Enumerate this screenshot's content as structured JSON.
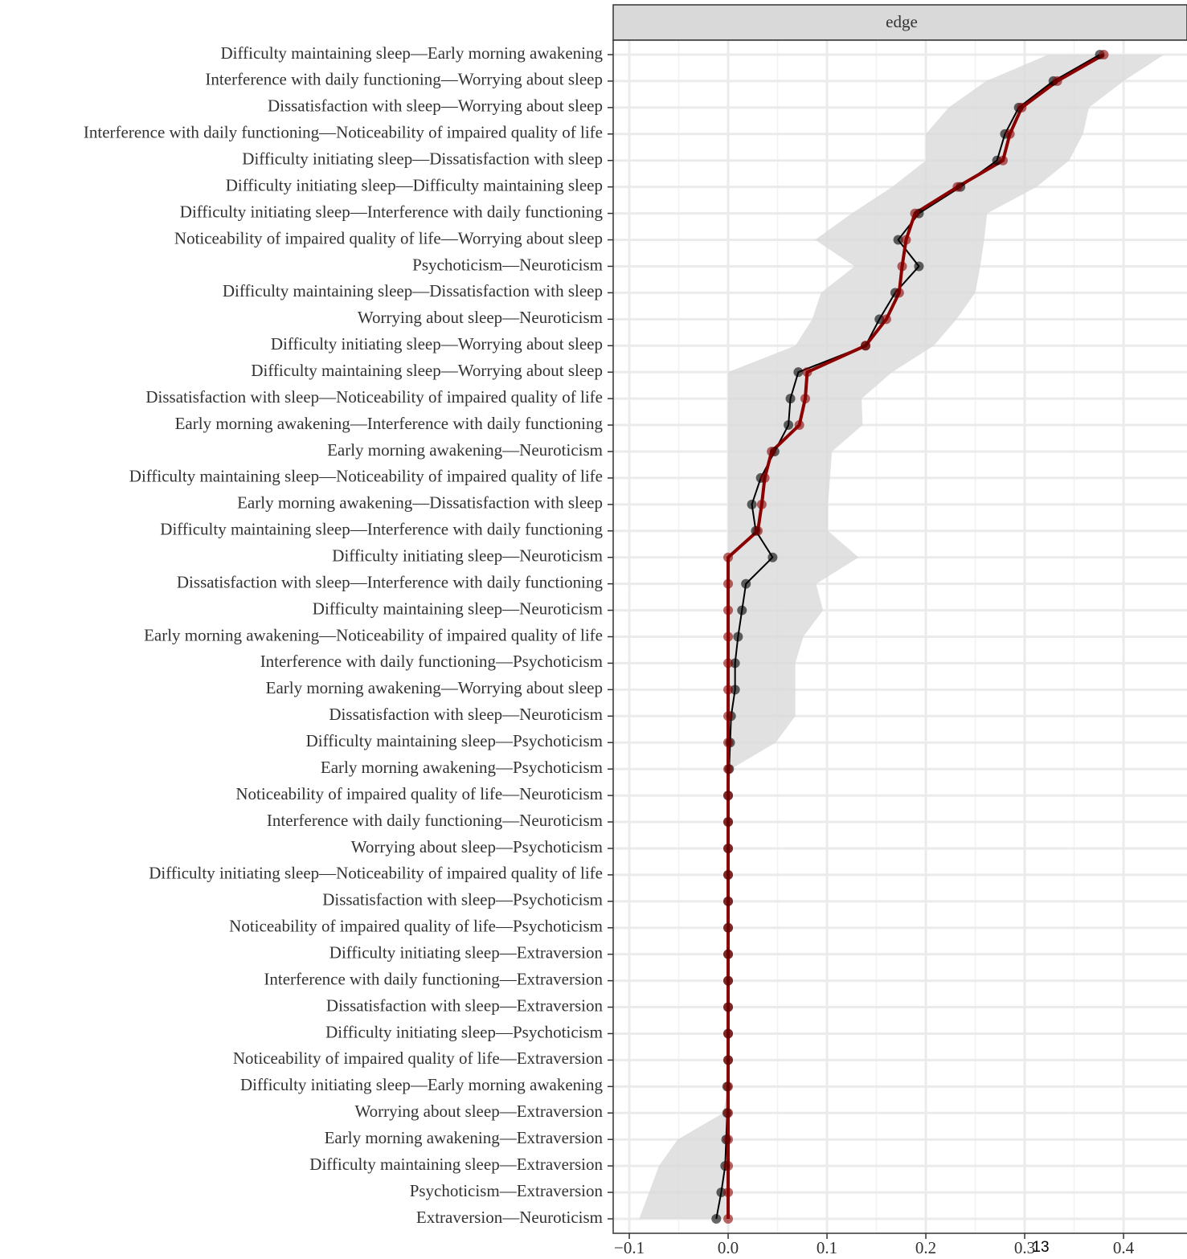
{
  "chart_data": {
    "type": "line",
    "orientation": "horizontal",
    "strip_title": "edge",
    "annotation": "13",
    "categories": [
      "Difficulty maintaining sleep––Early morning awakening",
      "Interference with daily functioning––Worrying about sleep",
      "Dissatisfaction with sleep––Worrying about sleep",
      "Interference with daily functioning––Noticeability of impaired quality of life",
      "Difficulty initiating sleep––Dissatisfaction with sleep",
      "Difficulty initiating sleep––Difficulty maintaining sleep",
      "Difficulty initiating sleep––Interference with daily functioning",
      "Noticeability of impaired quality of life––Worrying about sleep",
      "Psychoticism––Neuroticism",
      "Difficulty maintaining sleep––Dissatisfaction with sleep",
      "Worrying about sleep––Neuroticism",
      "Difficulty initiating sleep––Worrying about sleep",
      "Difficulty maintaining sleep––Worrying about sleep",
      "Dissatisfaction with sleep––Noticeability of impaired quality of life",
      "Early morning awakening––Interference with daily functioning",
      "Early morning awakening––Neuroticism",
      "Difficulty maintaining sleep––Noticeability of impaired quality of life",
      "Early morning awakening––Dissatisfaction with sleep",
      "Difficulty maintaining sleep––Interference with daily functioning",
      "Difficulty initiating sleep––Neuroticism",
      "Dissatisfaction with sleep––Interference with daily functioning",
      "Difficulty maintaining sleep––Neuroticism",
      "Early morning awakening––Noticeability of impaired quality of life",
      "Interference with daily functioning––Psychoticism",
      "Early morning awakening––Worrying about sleep",
      "Dissatisfaction with sleep––Neuroticism",
      "Difficulty maintaining sleep––Psychoticism",
      "Early morning awakening––Psychoticism",
      "Noticeability of impaired quality of life––Neuroticism",
      "Interference with daily functioning––Neuroticism",
      "Worrying about sleep––Psychoticism",
      "Difficulty initiating sleep––Noticeability of impaired quality of life",
      "Dissatisfaction with sleep––Psychoticism",
      "Noticeability of impaired quality of life––Psychoticism",
      "Difficulty initiating sleep––Extraversion",
      "Interference with daily functioning––Extraversion",
      "Dissatisfaction with sleep––Extraversion",
      "Difficulty initiating sleep––Psychoticism",
      "Noticeability of impaired quality of life––Extraversion",
      "Difficulty initiating sleep––Early morning awakening",
      "Worrying about sleep––Extraversion",
      "Early morning awakening––Extraversion",
      "Difficulty maintaining sleep––Extraversion",
      "Psychoticism––Extraversion",
      "Extraversion––Neuroticism"
    ],
    "band": {
      "color": "#d9d9d9",
      "lower": [
        0.324,
        0.261,
        0.223,
        0.2,
        0.2,
        0.166,
        0.125,
        0.088,
        0.128,
        0.094,
        0.085,
        0.068,
        0,
        0,
        0,
        0,
        0,
        0,
        0,
        0,
        0,
        0,
        0,
        0,
        0,
        0,
        0,
        0,
        0,
        0,
        0,
        0,
        0,
        0,
        0,
        0,
        0,
        0,
        0,
        0,
        -0.005,
        -0.051,
        -0.07,
        -0.08,
        -0.09
      ],
      "upper": [
        0.441,
        0.4,
        0.365,
        0.359,
        0.345,
        0.312,
        0.262,
        0.259,
        0.255,
        0.25,
        0.231,
        0.208,
        0.166,
        0.135,
        0.136,
        0.105,
        0.103,
        0.101,
        0.101,
        0.132,
        0.089,
        0.096,
        0.076,
        0.068,
        0.068,
        0.068,
        0.048,
        0.003,
        0,
        0,
        0,
        0,
        0,
        0,
        0,
        0,
        0,
        0,
        0,
        0,
        0,
        0,
        0,
        0,
        0
      ]
    },
    "series": [
      {
        "color": "#000000",
        "width": 2,
        "values": [
          0.376,
          0.329,
          0.294,
          0.28,
          0.272,
          0.235,
          0.193,
          0.172,
          0.193,
          0.169,
          0.153,
          0.139,
          0.071,
          0.063,
          0.061,
          0.047,
          0.033,
          0.024,
          0.028,
          0.045,
          0.018,
          0.014,
          0.01,
          0.007,
          0.007,
          0.003,
          0.002,
          0.001,
          0,
          0,
          0,
          0,
          0,
          0,
          0,
          0,
          0,
          0,
          0,
          -0.001,
          -0.001,
          -0.002,
          -0.003,
          -0.007,
          -0.012
        ]
      },
      {
        "color": "#8b0000",
        "width": 4,
        "values": [
          0.38,
          0.333,
          0.297,
          0.285,
          0.278,
          0.232,
          0.189,
          0.18,
          0.176,
          0.173,
          0.16,
          0.139,
          0.08,
          0.078,
          0.072,
          0.044,
          0.037,
          0.034,
          0.03,
          0,
          0,
          0,
          0,
          0,
          0,
          0,
          0,
          0,
          0,
          0,
          0,
          0,
          0,
          0,
          0,
          0,
          0,
          0,
          0,
          0,
          0,
          0,
          0,
          0,
          0
        ]
      }
    ],
    "xlim": [
      -0.1163,
      0.4642
    ],
    "xticks": [
      {
        "value": -0.1,
        "label": "−0.1"
      },
      {
        "value": 0,
        "label": "0.0"
      },
      0.1,
      0.2,
      0.3,
      0.4
    ],
    "grid": true
  }
}
